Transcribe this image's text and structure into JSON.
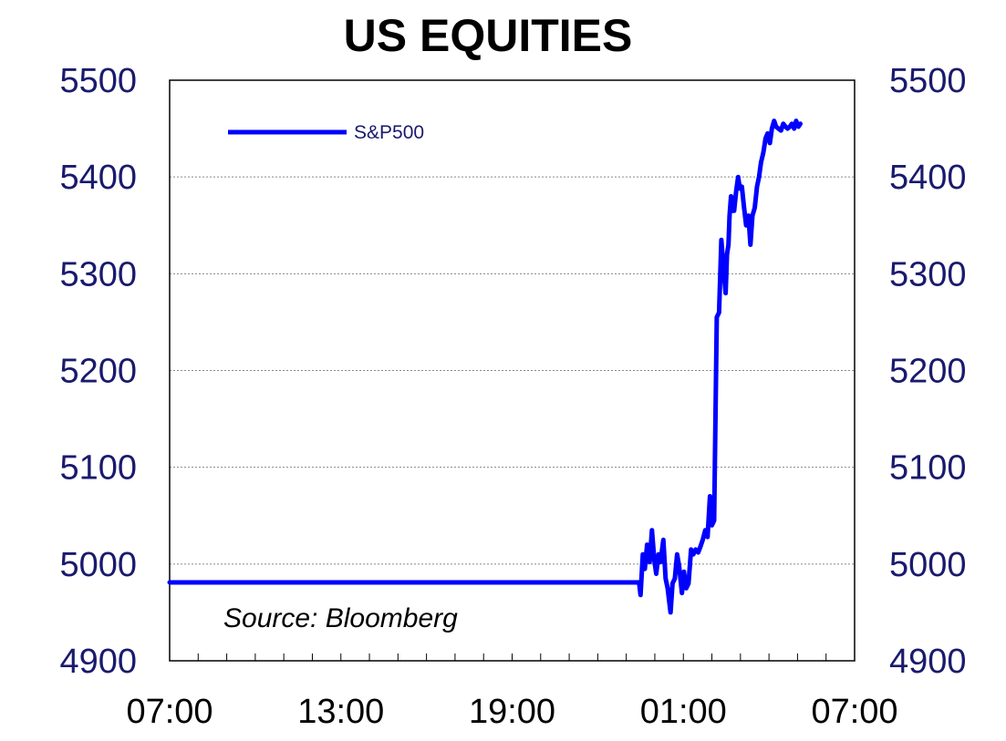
{
  "chart_data": {
    "type": "line",
    "title": "US EQUITIES",
    "xlabel": "",
    "ylabel": "",
    "ylim": [
      4900,
      5500
    ],
    "yticks": [
      4900,
      5000,
      5100,
      5200,
      5300,
      5400,
      5500
    ],
    "ytick_labels": [
      "4900",
      "5000",
      "5100",
      "5200",
      "5300",
      "5400",
      "5500"
    ],
    "xlim_hours": [
      0,
      24
    ],
    "xticks_hours": [
      0,
      6,
      12,
      18,
      24
    ],
    "xtick_labels": [
      "07:00",
      "13:00",
      "19:00",
      "01:00",
      "07:00"
    ],
    "grid": "horizontal dotted",
    "legend": "top-left",
    "source_note": "Source: Bloomberg",
    "series": [
      {
        "name": "S&P500",
        "color": "#0000ff",
        "x_hours": [
          0,
          16.45,
          16.5,
          16.58,
          16.65,
          16.73,
          16.82,
          16.9,
          16.98,
          17.05,
          17.13,
          17.2,
          17.3,
          17.38,
          17.45,
          17.55,
          17.62,
          17.7,
          17.78,
          17.85,
          17.95,
          18.02,
          18.1,
          18.18,
          18.27,
          18.35,
          18.43,
          18.52,
          18.6,
          18.68,
          18.77,
          18.85,
          18.93,
          19.0,
          19.08,
          19.17,
          19.25,
          19.33,
          19.42,
          19.48,
          19.53,
          19.58,
          19.62,
          19.67,
          19.72,
          19.78,
          19.85,
          19.92,
          19.98,
          20.05,
          20.12,
          20.2,
          20.28,
          20.35,
          20.42,
          20.5,
          20.58,
          20.65,
          20.72,
          20.8,
          20.88,
          20.95,
          21.03,
          21.1,
          21.18,
          21.25,
          21.33,
          21.42,
          21.5,
          21.58,
          21.65,
          21.73,
          21.8,
          21.88,
          21.95,
          22.03,
          22.1
        ],
        "values": [
          4981,
          4981,
          4968,
          5010,
          4995,
          5020,
          5002,
          5035,
          5005,
          4990,
          5010,
          5002,
          5025,
          4985,
          4975,
          4950,
          4980,
          4985,
          5010,
          4998,
          4970,
          4992,
          4975,
          4980,
          5015,
          5010,
          5015,
          5012,
          5018,
          5025,
          5035,
          5028,
          5070,
          5040,
          5045,
          5255,
          5260,
          5335,
          5300,
          5280,
          5320,
          5330,
          5360,
          5380,
          5365,
          5365,
          5385,
          5400,
          5388,
          5390,
          5370,
          5350,
          5360,
          5330,
          5360,
          5368,
          5390,
          5400,
          5415,
          5425,
          5440,
          5445,
          5435,
          5450,
          5458,
          5452,
          5450,
          5448,
          5455,
          5452,
          5450,
          5452,
          5455,
          5450,
          5458,
          5452,
          5455
        ]
      }
    ]
  },
  "legend_label": "S&P500",
  "source_label": "Source: Bloomberg",
  "colors": {
    "series": "#0000ff",
    "axis_labels": "#1a1a6e",
    "grid": "#888888"
  }
}
